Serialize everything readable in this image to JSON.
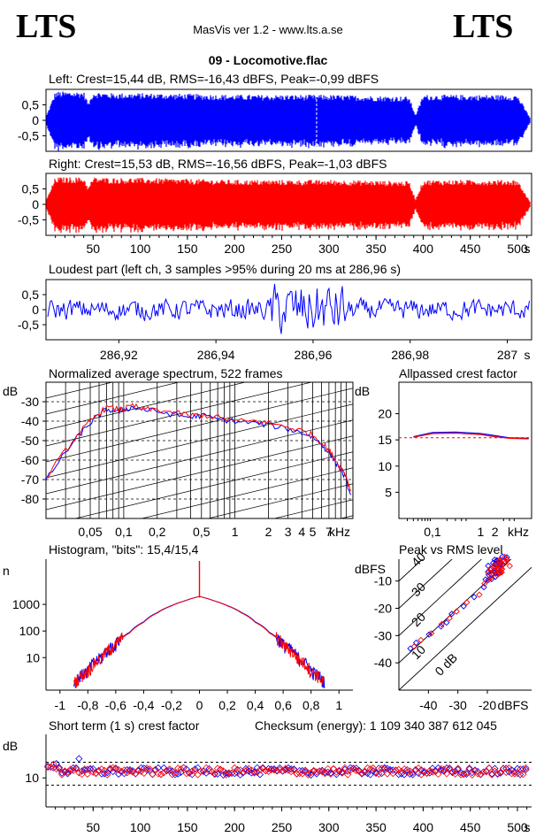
{
  "header": {
    "logo_left": "LTS",
    "logo_right": "LTS",
    "app_title": "MasVis ver 1.2 - www.lts.a.se",
    "file_title": "09 - Locomotive.flac"
  },
  "colors": {
    "left_channel": "#0000ff",
    "right_channel": "#ff0000",
    "grid": "#000000"
  },
  "chart_data": [
    {
      "type": "area",
      "id": "left_waveform",
      "title": "Left: Crest=15,44 dB, RMS=-16,43 dBFS, Peak=-0,99 dBFS",
      "yticks": [
        "0,5",
        "0",
        "-0,5"
      ],
      "ylim": [
        -1,
        1
      ],
      "xlim": [
        0,
        515
      ],
      "marker_x": 287,
      "envelope": {
        "x": [
          0,
          10,
          40,
          45,
          50,
          70,
          100,
          150,
          200,
          250,
          300,
          350,
          385,
          392,
          400,
          450,
          500,
          515
        ],
        "amp": [
          0.1,
          0.85,
          0.85,
          0.5,
          0.85,
          0.8,
          0.8,
          0.78,
          0.75,
          0.75,
          0.75,
          0.72,
          0.7,
          0.15,
          0.75,
          0.75,
          0.75,
          0.0
        ]
      }
    },
    {
      "type": "area",
      "id": "right_waveform",
      "title": "Right: Crest=15,53 dB, RMS=-16,56 dBFS, Peak=-1,03 dBFS",
      "yticks": [
        "0,5",
        "0",
        "-0,5"
      ],
      "ylim": [
        -1,
        1
      ],
      "xlim": [
        0,
        515
      ],
      "xticks": [
        "50",
        "100",
        "150",
        "200",
        "250",
        "300",
        "350",
        "400",
        "450",
        "500"
      ],
      "xunit": "s",
      "envelope": {
        "x": [
          0,
          10,
          40,
          45,
          50,
          70,
          100,
          150,
          200,
          250,
          300,
          350,
          385,
          392,
          400,
          450,
          500,
          515
        ],
        "amp": [
          0.1,
          0.8,
          0.8,
          0.5,
          0.8,
          0.78,
          0.78,
          0.75,
          0.72,
          0.72,
          0.72,
          0.7,
          0.68,
          0.15,
          0.72,
          0.72,
          0.72,
          0.0
        ]
      }
    },
    {
      "type": "line",
      "id": "loudest_part",
      "title": "Loudest part (left  ch, 3 samples >95% during 20 ms at 286,96 s)",
      "yticks": [
        "0,5",
        "0",
        "-0,5"
      ],
      "xticks": [
        "286,92",
        "286,94",
        "286,96",
        "286,98",
        "287"
      ],
      "xunit": "s",
      "xlim": [
        286.905,
        287.005
      ],
      "ylim": [
        -1,
        1
      ]
    },
    {
      "type": "line",
      "id": "average_spectrum",
      "title": "Normalized average spectrum, 522 frames",
      "ylabel": "dB",
      "yticks": [
        "-30",
        "-40",
        "-50",
        "-60",
        "-70",
        "-80"
      ],
      "xticks": [
        "0,05",
        "0,1",
        "0,2",
        "0,5",
        "1",
        "2",
        "3",
        "4",
        "5",
        "7"
      ],
      "xunit": "kHz",
      "xscale": "log",
      "ylim": [
        -90,
        -20
      ],
      "series": [
        {
          "color": "#0000ff",
          "x": [
            0.02,
            0.03,
            0.04,
            0.05,
            0.06,
            0.07,
            0.09,
            0.1,
            0.12,
            0.15,
            0.2,
            0.3,
            0.4,
            0.5,
            0.7,
            1,
            1.5,
            2,
            3,
            4,
            5,
            6,
            7,
            8,
            9,
            10,
            11
          ],
          "y": [
            -70,
            -56,
            -47,
            -41,
            -37,
            -34,
            -35,
            -34,
            -33,
            -34,
            -35,
            -37,
            -38,
            -37,
            -39,
            -40,
            -41,
            -42,
            -44,
            -46,
            -48,
            -52,
            -56,
            -61,
            -65,
            -70,
            -79
          ]
        },
        {
          "color": "#ff0000",
          "x": [
            0.02,
            0.03,
            0.04,
            0.05,
            0.06,
            0.07,
            0.09,
            0.1,
            0.12,
            0.15,
            0.2,
            0.3,
            0.4,
            0.5,
            0.7,
            1,
            1.5,
            2,
            3,
            4,
            5,
            6,
            7,
            8,
            9,
            10,
            11
          ],
          "y": [
            -69,
            -55,
            -46,
            -40,
            -36,
            -33,
            -34,
            -34,
            -32,
            -34,
            -34,
            -36,
            -37,
            -37,
            -38,
            -40,
            -40,
            -41,
            -43,
            -45,
            -47,
            -51,
            -55,
            -60,
            -64,
            -68,
            -76
          ]
        }
      ]
    },
    {
      "type": "line",
      "id": "allpassed_crest",
      "title": "Allpassed crest factor",
      "ylabel": "dB",
      "yticks": [
        "20",
        "15",
        "10",
        "5"
      ],
      "xticks": [
        "0,1",
        "1",
        "2"
      ],
      "xunit": "kHz",
      "xscale": "log",
      "ylim": [
        0,
        26
      ],
      "reference": 15.4,
      "series": [
        {
          "color": "#0000ff",
          "x": [
            0.04,
            0.1,
            0.3,
            1,
            2,
            4,
            10
          ],
          "y": [
            15.6,
            16.4,
            16.5,
            16.2,
            15.8,
            15.4,
            15.3
          ]
        },
        {
          "color": "#ff0000",
          "x": [
            0.04,
            0.1,
            0.3,
            1,
            2,
            4,
            10
          ],
          "y": [
            15.5,
            16.2,
            16.3,
            16.0,
            15.6,
            15.3,
            15.2
          ]
        }
      ]
    },
    {
      "type": "line",
      "id": "histogram",
      "title": "Histogram, \"bits\": 15,4/15,4",
      "ylabel": "n",
      "yscale": "log",
      "yticks": [
        "1000",
        "100",
        "10"
      ],
      "xticks": [
        "-1",
        "-0,8",
        "-0,6",
        "-0,4",
        "-0,2",
        "0",
        "0,2",
        "0,4",
        "0,6",
        "0,8",
        "1"
      ],
      "xlim": [
        -1.1,
        1.1
      ],
      "ylim": [
        0.6,
        50000
      ],
      "series": [
        {
          "color": "#0000ff",
          "x": [
            -0.9,
            -0.8,
            -0.7,
            -0.6,
            -0.5,
            -0.4,
            -0.3,
            -0.2,
            -0.1,
            0,
            0.1,
            0.2,
            0.3,
            0.4,
            0.5,
            0.6,
            0.7,
            0.8,
            0.9
          ],
          "y": [
            1,
            3,
            10,
            30,
            90,
            220,
            500,
            900,
            1400,
            2000,
            1400,
            900,
            500,
            220,
            90,
            30,
            10,
            3,
            1
          ]
        },
        {
          "color": "#ff0000",
          "x": [
            -0.9,
            -0.8,
            -0.7,
            -0.6,
            -0.5,
            -0.4,
            -0.3,
            -0.2,
            -0.1,
            0,
            0.1,
            0.2,
            0.3,
            0.4,
            0.5,
            0.6,
            0.7,
            0.8,
            0.9
          ],
          "y": [
            1,
            3,
            9,
            28,
            85,
            210,
            480,
            880,
            1380,
            2000,
            1380,
            880,
            480,
            210,
            85,
            28,
            9,
            3,
            1
          ]
        }
      ]
    },
    {
      "type": "scatter",
      "id": "peak_vs_rms",
      "title": "Peak vs RMS level",
      "ylabel": "dBFS",
      "xlabel": "dBFS",
      "yticks": [
        "-10",
        "-20",
        "-30",
        "-40"
      ],
      "xticks": [
        "-40",
        "-30",
        "-20"
      ],
      "xlim": [
        -50,
        -5
      ],
      "ylim": [
        -50,
        -2
      ],
      "crest_lines": [
        "0 dB",
        "10",
        "20",
        "30",
        "40"
      ],
      "series": [
        {
          "color": "#0000ff",
          "x": [
            -46,
            -44,
            -40,
            -36,
            -34,
            -32,
            -28,
            -24,
            -21,
            -20,
            -19,
            -18,
            -17,
            -16,
            -15
          ],
          "y": [
            -35,
            -33,
            -30,
            -27,
            -25,
            -22,
            -19,
            -16,
            -12,
            -10,
            -8,
            -6,
            -5,
            -4,
            -3
          ]
        },
        {
          "color": "#ff0000",
          "x": [
            -45,
            -43,
            -39,
            -35,
            -33,
            -30,
            -27,
            -23,
            -21,
            -19,
            -18,
            -17,
            -16,
            -15,
            -14
          ],
          "y": [
            -34,
            -32,
            -29,
            -26,
            -24,
            -21,
            -18,
            -15,
            -11,
            -9,
            -7,
            -6,
            -5,
            -4,
            -3
          ]
        }
      ]
    },
    {
      "type": "scatter",
      "id": "short_term_crest",
      "title": "Short term (1 s) crest factor",
      "ylabel": "dB",
      "yticks": [
        "10"
      ],
      "xticks": [
        "50",
        "100",
        "150",
        "200",
        "250",
        "300",
        "350",
        "400",
        "450",
        "500"
      ],
      "xunit": "s",
      "xlim": [
        0,
        515
      ],
      "ylim": [
        0,
        25
      ],
      "reference_high": 15.4,
      "reference_low": 7.5,
      "checksum_label": "Checksum (energy):  1 109 340 387 612 045"
    }
  ]
}
